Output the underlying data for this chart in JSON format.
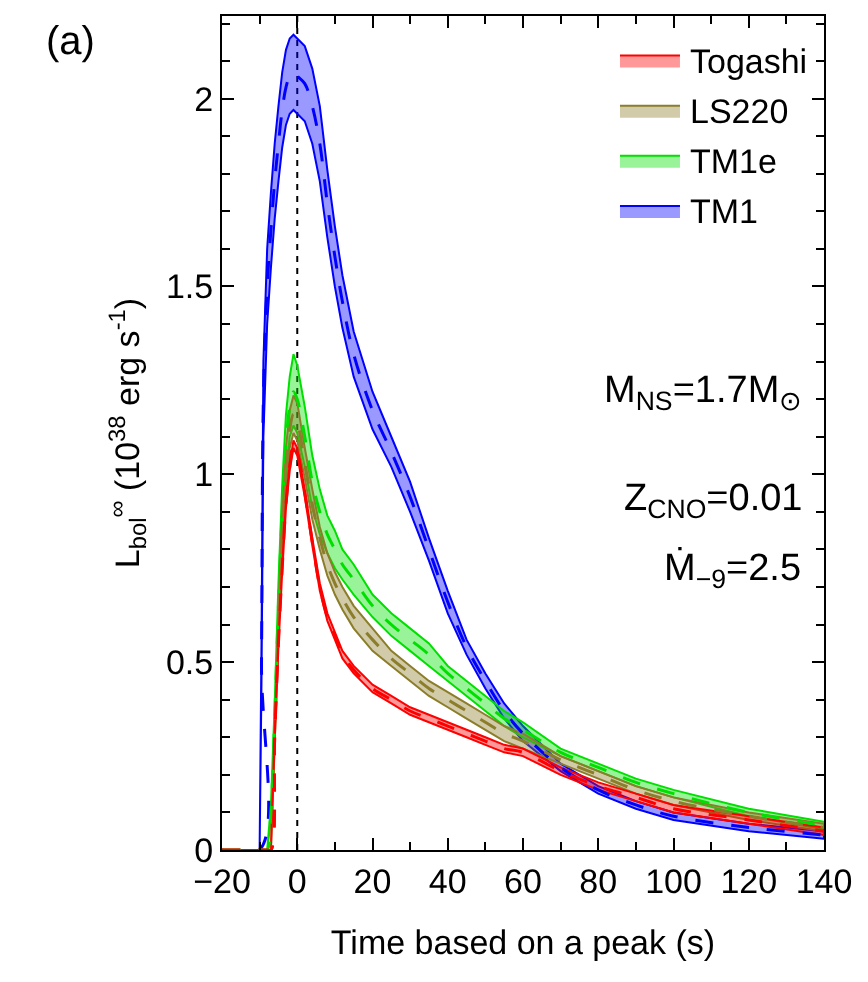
{
  "chart_data": {
    "type": "line",
    "xlabel": "Time based on a peak (s)",
    "ylabel": "L$_{bol}$$^{∞}$ (10$^{38}$ erg s$^{-1}$)",
    "xlim": [
      -20,
      140
    ],
    "xticks": [
      -20,
      0,
      20,
      40,
      60,
      80,
      100,
      120,
      140
    ],
    "ylim": [
      0,
      2.22
    ],
    "yticks": [
      0,
      0.5,
      1,
      1.5,
      2
    ],
    "grid": false,
    "legend": "top right",
    "line_style": "dashed",
    "marker": "none",
    "ref_lines": [
      {
        "axis": "x",
        "value": 0,
        "color": "#000000",
        "line_style": "dotted"
      }
    ],
    "annotations": [
      "(a)",
      "M$_{NS}$=1.7M$_{⊙}$",
      "Z$_{CNO}$=0.01",
      "Ṁ$_{−9}$=2.5"
    ],
    "x": [
      -20,
      -10,
      -9.5,
      -9,
      -8,
      -7,
      -6,
      -5,
      -4,
      -3,
      -2,
      -1,
      0,
      2,
      4,
      6,
      8,
      10,
      12,
      15,
      20,
      25,
      30,
      35,
      40,
      45,
      50,
      55,
      60,
      70,
      80,
      90,
      100,
      120,
      140
    ],
    "series": [
      {
        "name": "Togashi",
        "color": "#ff0000",
        "values": [
          0,
          0,
          0,
          0,
          0,
          0,
          0.3,
          0.55,
          0.75,
          0.92,
          1.02,
          1.08,
          1.06,
          0.95,
          0.82,
          0.7,
          0.62,
          0.57,
          0.52,
          0.48,
          0.43,
          0.4,
          0.37,
          0.35,
          0.33,
          0.31,
          0.29,
          0.27,
          0.26,
          0.21,
          0.17,
          0.14,
          0.11,
          0.08,
          0.05
        ],
        "lower": [
          0,
          0,
          0,
          0,
          0,
          0,
          0.29,
          0.54,
          0.74,
          0.91,
          1.01,
          1.07,
          1.05,
          0.94,
          0.81,
          0.69,
          0.61,
          0.56,
          0.51,
          0.47,
          0.42,
          0.39,
          0.36,
          0.34,
          0.32,
          0.3,
          0.28,
          0.26,
          0.25,
          0.2,
          0.16,
          0.13,
          0.1,
          0.07,
          0.04
        ],
        "upper": [
          0,
          0,
          0,
          0,
          0,
          0,
          0.31,
          0.56,
          0.76,
          0.93,
          1.03,
          1.09,
          1.07,
          0.96,
          0.83,
          0.71,
          0.63,
          0.58,
          0.53,
          0.49,
          0.44,
          0.41,
          0.38,
          0.36,
          0.34,
          0.32,
          0.3,
          0.28,
          0.27,
          0.22,
          0.18,
          0.15,
          0.12,
          0.09,
          0.06
        ]
      },
      {
        "name": "LS220",
        "color": "#8b7d2a",
        "values": [
          0,
          0,
          0,
          0,
          0,
          0,
          0.3,
          0.6,
          0.85,
          1.02,
          1.12,
          1.16,
          1.14,
          1.03,
          0.92,
          0.83,
          0.76,
          0.71,
          0.67,
          0.62,
          0.56,
          0.51,
          0.47,
          0.43,
          0.4,
          0.37,
          0.34,
          0.31,
          0.29,
          0.24,
          0.2,
          0.16,
          0.13,
          0.09,
          0.06
        ],
        "lower": [
          0,
          0,
          0,
          0,
          0,
          0,
          0.28,
          0.57,
          0.81,
          0.97,
          1.07,
          1.11,
          1.09,
          0.99,
          0.88,
          0.8,
          0.73,
          0.68,
          0.64,
          0.59,
          0.53,
          0.49,
          0.45,
          0.41,
          0.38,
          0.35,
          0.32,
          0.29,
          0.27,
          0.23,
          0.19,
          0.15,
          0.12,
          0.08,
          0.05
        ],
        "upper": [
          0,
          0,
          0,
          0,
          0,
          0,
          0.32,
          0.63,
          0.89,
          1.07,
          1.17,
          1.21,
          1.19,
          1.07,
          0.96,
          0.86,
          0.79,
          0.74,
          0.7,
          0.65,
          0.59,
          0.53,
          0.49,
          0.45,
          0.42,
          0.39,
          0.36,
          0.33,
          0.31,
          0.25,
          0.21,
          0.17,
          0.14,
          0.1,
          0.07
        ]
      },
      {
        "name": "TM1e",
        "color": "#00e000",
        "values": [
          0,
          0,
          0,
          0,
          0,
          0.1,
          0.35,
          0.65,
          0.9,
          1.08,
          1.18,
          1.22,
          1.2,
          1.1,
          0.98,
          0.9,
          0.84,
          0.8,
          0.76,
          0.72,
          0.65,
          0.6,
          0.56,
          0.52,
          0.47,
          0.43,
          0.39,
          0.35,
          0.32,
          0.26,
          0.22,
          0.18,
          0.15,
          0.1,
          0.065
        ],
        "lower": [
          0,
          0,
          0,
          0,
          0,
          0.08,
          0.31,
          0.59,
          0.83,
          1.0,
          1.1,
          1.13,
          1.11,
          1.02,
          0.91,
          0.84,
          0.79,
          0.75,
          0.72,
          0.68,
          0.62,
          0.57,
          0.53,
          0.49,
          0.45,
          0.41,
          0.37,
          0.33,
          0.3,
          0.25,
          0.21,
          0.17,
          0.14,
          0.09,
          0.055
        ],
        "upper": [
          0,
          0,
          0,
          0,
          0,
          0.12,
          0.39,
          0.71,
          0.97,
          1.16,
          1.26,
          1.32,
          1.29,
          1.18,
          1.05,
          0.96,
          0.89,
          0.85,
          0.8,
          0.76,
          0.68,
          0.63,
          0.59,
          0.55,
          0.49,
          0.45,
          0.41,
          0.37,
          0.34,
          0.27,
          0.23,
          0.19,
          0.16,
          0.11,
          0.075
        ]
      },
      {
        "name": "TM1",
        "color": "#0000ff",
        "values": [
          0,
          0,
          0.5,
          1.2,
          1.5,
          1.65,
          1.78,
          1.88,
          1.97,
          2.03,
          2.06,
          2.07,
          2.06,
          2.04,
          1.98,
          1.88,
          1.72,
          1.58,
          1.46,
          1.32,
          1.17,
          1.06,
          0.94,
          0.8,
          0.66,
          0.54,
          0.45,
          0.37,
          0.31,
          0.22,
          0.16,
          0.12,
          0.09,
          0.06,
          0.04
        ],
        "lower": [
          0,
          0,
          0.45,
          1.1,
          1.4,
          1.55,
          1.68,
          1.78,
          1.87,
          1.93,
          1.96,
          1.97,
          1.96,
          1.94,
          1.88,
          1.78,
          1.63,
          1.5,
          1.39,
          1.26,
          1.12,
          1.02,
          0.9,
          0.77,
          0.63,
          0.52,
          0.43,
          0.35,
          0.29,
          0.21,
          0.15,
          0.11,
          0.08,
          0.05,
          0.03
        ],
        "upper": [
          0,
          0,
          0.55,
          1.3,
          1.6,
          1.75,
          1.88,
          1.98,
          2.07,
          2.13,
          2.16,
          2.17,
          2.16,
          2.14,
          2.08,
          1.98,
          1.81,
          1.66,
          1.53,
          1.38,
          1.22,
          1.1,
          0.98,
          0.83,
          0.69,
          0.56,
          0.47,
          0.39,
          0.33,
          0.23,
          0.17,
          0.13,
          0.1,
          0.07,
          0.05
        ]
      }
    ]
  }
}
